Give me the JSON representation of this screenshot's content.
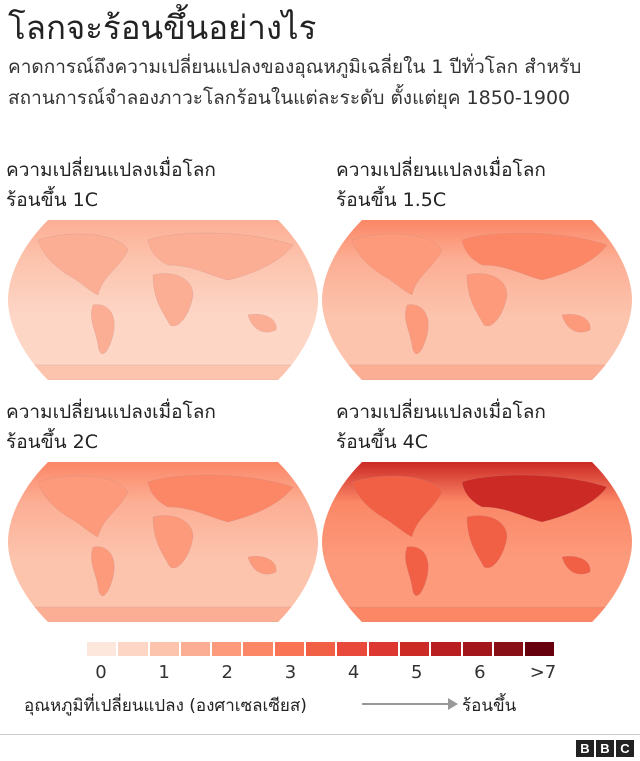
{
  "header": {
    "title": "โลกจะร้อนขึ้นอย่างไร",
    "subtitle": "คาดการณ์ถึงความเปลี่ยนแปลงของอุณหภูมิเฉลี่ยใน 1 ปีทั่วโลก สำหรับสถานการณ์จำลองภาวะโลกร้อนในแต่ละระดับ ตั้งแต่ยุค 1850-1900"
  },
  "panels": [
    {
      "title_line1": "ความเปลี่ยนแปลงเมื่อโลก",
      "title_line2": "ร้อนขึ้น 1C",
      "warming_c": 1
    },
    {
      "title_line1": "ความเปลี่ยนแปลงเมื่อโลก",
      "title_line2": "ร้อนขึ้น 1.5C",
      "warming_c": 1.5
    },
    {
      "title_line1": "ความเปลี่ยนแปลงเมื่อโลก",
      "title_line2": "ร้อนขึ้น 2C",
      "warming_c": 2
    },
    {
      "title_line1": "ความเปลี่ยนแปลงเมื่อโลก",
      "title_line2": "ร้อนขึ้น 4C",
      "warming_c": 4
    }
  ],
  "legend": {
    "colors": [
      "#fde6dc",
      "#fdd6c6",
      "#fcc3ad",
      "#fcae94",
      "#fc9a7b",
      "#fb8766",
      "#f87455",
      "#f15f45",
      "#e8493a",
      "#dc3730",
      "#cc2a25",
      "#b91f21",
      "#a3161b",
      "#870f15",
      "#67000d"
    ],
    "ticks": [
      "0",
      "1",
      "2",
      "3",
      "4",
      "5",
      "6",
      ">7"
    ],
    "label": "อุณหภูมิที่เปลี่ยนแปลง (องศาเซลเซียส)",
    "arrow_label": "ร้อนขึ้น"
  },
  "footer": {
    "logo": "BBC"
  }
}
